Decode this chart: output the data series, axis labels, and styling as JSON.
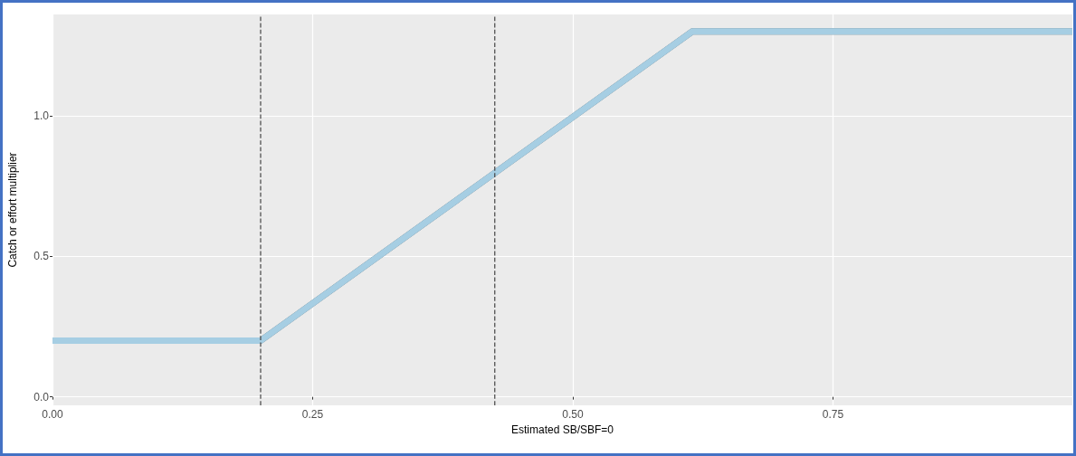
{
  "chart_data": {
    "type": "line",
    "xlabel": "Estimated SB/SBF=0",
    "ylabel": "Catch or effort multiplier",
    "x": [
      0,
      0.2,
      0.615,
      0.98
    ],
    "series": [
      {
        "color": "#a6cee3",
        "values": [
          0.2,
          0.2,
          1.3,
          1.3
        ]
      }
    ],
    "xlim": [
      0,
      0.98
    ],
    "xticks": [
      {
        "value": 0,
        "label": "0.00"
      },
      {
        "value": 0.25,
        "label": "0.25"
      },
      {
        "value": 0.5,
        "label": "0.50"
      },
      {
        "value": 0.75,
        "label": "0.75"
      }
    ],
    "ylim": [
      -0.03,
      1.36
    ],
    "yticks": [
      {
        "value": 0,
        "label": "0.0"
      },
      {
        "value": 0.5,
        "label": "0.5"
      },
      {
        "value": 1,
        "label": "1.0"
      }
    ],
    "ref_lines": [
      {
        "axis": "x",
        "value": 0.2,
        "color": "#444444",
        "line_style": "dashed"
      },
      {
        "axis": "x",
        "value": 0.425,
        "color": "#444444",
        "line_style": "dashed"
      }
    ],
    "grid": true,
    "marker": "none",
    "line_style": "solid"
  }
}
